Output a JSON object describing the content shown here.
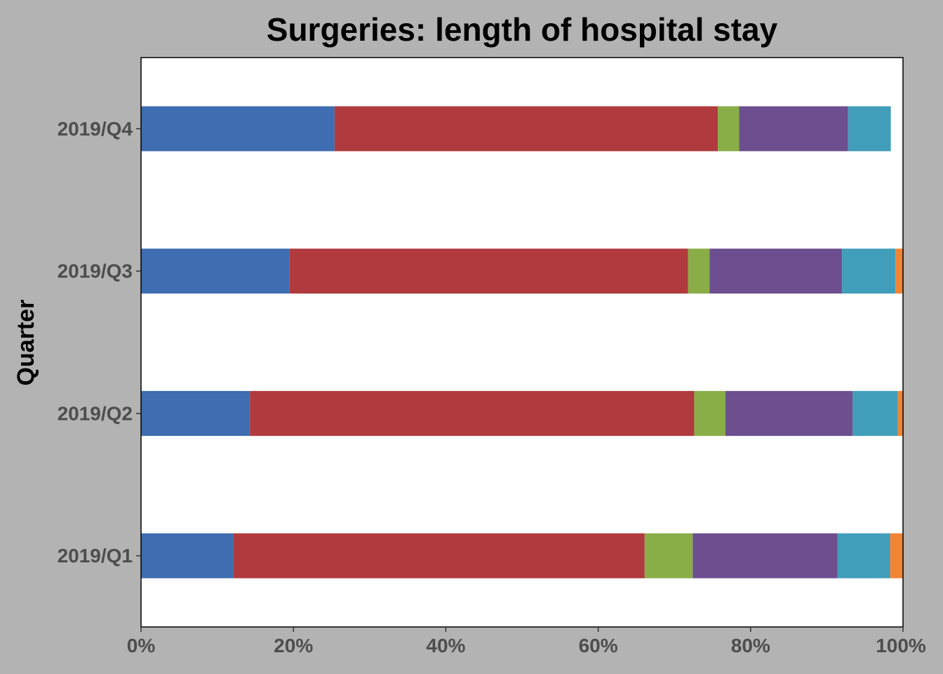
{
  "colors": {
    "background": "#b3b3b3",
    "panel": "#ffffff",
    "axis": "#000000",
    "tick_text": "#4d4d4d"
  },
  "chart_data": {
    "type": "bar",
    "orientation": "horizontal",
    "stacked": true,
    "title": "Surgeries: length of hospital stay",
    "xlabel": "",
    "ylabel": "Quarter",
    "xlim": [
      0,
      100
    ],
    "x_tick_values": [
      0,
      20,
      40,
      60,
      80,
      100
    ],
    "x_tick_labels": [
      "0%",
      "20%",
      "40%",
      "60%",
      "80%",
      "100%"
    ],
    "categories": [
      "2019/Q1",
      "2019/Q2",
      "2019/Q3",
      "2019/Q4"
    ],
    "grid": false,
    "legend": "none",
    "series": [
      {
        "color": "#3f6db1",
        "values": [
          12.1,
          14.3,
          19.5,
          25.4
        ]
      },
      {
        "color": "#b13a3e",
        "values": [
          54.0,
          58.3,
          52.3,
          50.3
        ]
      },
      {
        "color": "#8aae47",
        "values": [
          6.3,
          4.1,
          2.8,
          2.8
        ]
      },
      {
        "color": "#6d4f90",
        "values": [
          19.0,
          16.7,
          17.4,
          14.3
        ]
      },
      {
        "color": "#419ebb",
        "values": [
          6.9,
          5.9,
          7.0,
          5.6
        ]
      },
      {
        "color": "#f08536",
        "values": [
          1.7,
          0.7,
          1.0,
          0.0
        ]
      }
    ]
  }
}
